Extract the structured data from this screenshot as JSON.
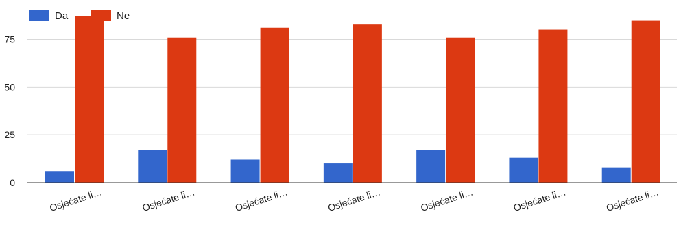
{
  "chart_data": {
    "type": "bar",
    "title": "",
    "xlabel": "",
    "ylabel": "",
    "categories": [
      "Osjećate li…",
      "Osjećate li…",
      "Osjećate li…",
      "Osjećate li…",
      "Osjećate li…",
      "Osjećate li…",
      "Osjećate li…"
    ],
    "series": [
      {
        "name": "Da",
        "color": "#3366cc",
        "values": [
          6,
          17,
          12,
          10,
          17,
          13,
          8
        ]
      },
      {
        "name": "Ne",
        "color": "#dc3912",
        "values": [
          87,
          76,
          81,
          83,
          76,
          80,
          85
        ]
      }
    ],
    "ylim": [
      0,
      90
    ],
    "yticks": [
      0,
      25,
      50,
      75
    ],
    "grid": true,
    "legend_position": "top-left"
  }
}
